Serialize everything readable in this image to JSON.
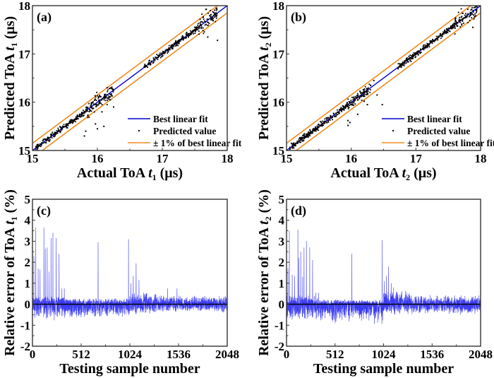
{
  "colors": {
    "fit": "#0000cc",
    "band": "#f08a1c",
    "points": "#000000",
    "error": "#1a1aee",
    "frame": "#333333"
  },
  "chart_data": [
    {
      "id": "a",
      "type": "scatter",
      "panel_label": "(a)",
      "xlabel": "Actual ToA t1 (μs)",
      "xlabel_parts": [
        "Actual ToA ",
        "t",
        "1",
        " (μs)"
      ],
      "ylabel": "Predicted ToA t1 (μs)",
      "ylabel_parts": [
        "Predicted ToA ",
        "t",
        "1",
        " (μs)"
      ],
      "xlim": [
        15,
        18
      ],
      "ylim": [
        15,
        18
      ],
      "xticks": [
        "15",
        "16",
        "17",
        "18"
      ],
      "yticks": [
        "15",
        "16",
        "17",
        "18"
      ],
      "legend": {
        "position": "bottom-right",
        "entries": [
          "Best linear fit",
          "Predicted value",
          "± 1% of best linear fit"
        ]
      },
      "series": [
        {
          "name": "Best linear fit",
          "kind": "line",
          "slope": 1,
          "intercept": 0
        },
        {
          "name": "± 1% of best linear fit",
          "kind": "band",
          "percent": 1
        },
        {
          "name": "Predicted value",
          "kind": "scatter",
          "clusters": [
            {
              "x_range": [
                15.05,
                15.85
              ],
              "spread": 0.03
            },
            {
              "x_range": [
                15.85,
                16.25
              ],
              "spread": 0.08
            },
            {
              "x_range": [
                16.72,
                17.55
              ],
              "spread": 0.03
            },
            {
              "x_range": [
                17.55,
                17.85
              ],
              "spread": 0.1
            }
          ],
          "outliers": [
            [
              15.8,
              15.3
            ],
            [
              15.82,
              15.4
            ],
            [
              15.97,
              15.55
            ],
            [
              16.0,
              15.45
            ],
            [
              16.1,
              15.5
            ],
            [
              16.25,
              15.9
            ],
            [
              16.07,
              15.8
            ],
            [
              17.7,
              17.35
            ],
            [
              17.85,
              17.28
            ],
            [
              16.15,
              16.3
            ],
            [
              16.2,
              16.05
            ]
          ]
        }
      ]
    },
    {
      "id": "b",
      "type": "scatter",
      "panel_label": "(b)",
      "xlabel": "Actual ToA t2 (μs)",
      "xlabel_parts": [
        "Actual ToA ",
        "t",
        "2",
        " (μs)"
      ],
      "ylabel": "Predicted ToA t2 (μs)",
      "ylabel_parts": [
        "Predicted ToA ",
        "t",
        "2",
        " (μs)"
      ],
      "xlim": [
        15,
        18
      ],
      "ylim": [
        15,
        18
      ],
      "xticks": [
        "15",
        "16",
        "17",
        "18"
      ],
      "yticks": [
        "15",
        "16",
        "17",
        "18"
      ],
      "legend": {
        "position": "bottom-right",
        "entries": [
          "Best linear fit",
          "Predicted value",
          "± 1% of best linear fit"
        ]
      },
      "series": [
        {
          "name": "Best linear fit",
          "kind": "line",
          "slope": 1,
          "intercept": 0
        },
        {
          "name": "± 1% of best linear fit",
          "kind": "band",
          "percent": 1
        },
        {
          "name": "Predicted value",
          "kind": "scatter",
          "clusters": [
            {
              "x_range": [
                15.05,
                15.95
              ],
              "spread": 0.03
            },
            {
              "x_range": [
                15.95,
                16.3
              ],
              "spread": 0.06
            },
            {
              "x_range": [
                16.72,
                17.6
              ],
              "spread": 0.03
            },
            {
              "x_range": [
                17.6,
                17.95
              ],
              "spread": 0.08
            }
          ],
          "outliers": [
            [
              15.95,
              15.52
            ],
            [
              15.95,
              15.62
            ],
            [
              15.98,
              15.58
            ],
            [
              16.1,
              15.75
            ],
            [
              16.25,
              15.95
            ],
            [
              16.3,
              16.35
            ],
            [
              16.35,
              16.45
            ],
            [
              16.4,
              16.15
            ],
            [
              16.48,
              15.95
            ],
            [
              17.88,
              17.55
            ],
            [
              16.2,
              16.02
            ]
          ]
        }
      ]
    },
    {
      "id": "c",
      "type": "line",
      "panel_label": "(c)",
      "xlabel": "Testing sample number",
      "ylabel": "Relative error of ToA t1 (%)",
      "ylabel_parts": [
        "Relative error of ToA ",
        "t",
        "1",
        " (%)"
      ],
      "xlim": [
        0,
        2048
      ],
      "ylim": [
        -2,
        5
      ],
      "xticks": [
        "0",
        "512",
        "1024",
        "1536",
        "2048"
      ],
      "yticks": [
        "-2",
        "-1",
        "0",
        "1",
        "2",
        "3",
        "4",
        "5"
      ],
      "spikes": [
        [
          15,
          2.3
        ],
        [
          35,
          3.65
        ],
        [
          60,
          1.7
        ],
        [
          80,
          1.65
        ],
        [
          120,
          3.65
        ],
        [
          135,
          2.65
        ],
        [
          155,
          2.7
        ],
        [
          175,
          1.55
        ],
        [
          195,
          3.15
        ],
        [
          215,
          3.4
        ],
        [
          250,
          3.15
        ],
        [
          280,
          2.4
        ],
        [
          310,
          0.75
        ],
        [
          335,
          0.75
        ],
        [
          690,
          2.95
        ],
        [
          1010,
          3.1
        ],
        [
          1035,
          1.0
        ],
        [
          1060,
          1.35
        ],
        [
          1090,
          1.95
        ],
        [
          1120,
          1.15
        ],
        [
          1420,
          0.75
        ],
        [
          1520,
          0.75
        ]
      ],
      "noise": [
        {
          "x_range": [
            0,
            340
          ],
          "pos_amp": 0.45,
          "neg_amp": -0.8
        },
        {
          "x_range": [
            340,
            1020
          ],
          "pos_amp": 0.3,
          "neg_amp": -0.7
        },
        {
          "x_range": [
            1020,
            1300
          ],
          "pos_amp": 0.6,
          "neg_amp": -0.55
        },
        {
          "x_range": [
            1300,
            2048
          ],
          "pos_amp": 0.45,
          "neg_amp": -0.4
        }
      ]
    },
    {
      "id": "d",
      "type": "line",
      "panel_label": "(d)",
      "xlabel": "Testing sample number",
      "ylabel": "Relative error of ToA t2 (%)",
      "ylabel_parts": [
        "Relative error of ToA ",
        "t",
        "2",
        " (%)"
      ],
      "xlim": [
        0,
        2048
      ],
      "ylim": [
        -2,
        5
      ],
      "xticks": [
        "0",
        "512",
        "1024",
        "1536",
        "2048"
      ],
      "yticks": [
        "-2",
        "-1",
        "0",
        "1",
        "2",
        "3",
        "4",
        "5"
      ],
      "spikes": [
        [
          15,
          1.7
        ],
        [
          30,
          3.5
        ],
        [
          60,
          1.4
        ],
        [
          85,
          1.35
        ],
        [
          120,
          3.55
        ],
        [
          130,
          2.2
        ],
        [
          150,
          2.5
        ],
        [
          170,
          1.3
        ],
        [
          185,
          2.7
        ],
        [
          210,
          3.0
        ],
        [
          245,
          2.7
        ],
        [
          275,
          2.1
        ],
        [
          310,
          0.55
        ],
        [
          340,
          0.55
        ],
        [
          690,
          2.4
        ],
        [
          1010,
          3.05
        ],
        [
          1030,
          1.1
        ],
        [
          1055,
          1.35
        ],
        [
          1075,
          1.8
        ],
        [
          1105,
          1.0
        ],
        [
          1130,
          0.8
        ]
      ],
      "noise": [
        {
          "x_range": [
            0,
            340
          ],
          "pos_amp": 0.45,
          "neg_amp": -0.85
        },
        {
          "x_range": [
            340,
            1020
          ],
          "pos_amp": 0.25,
          "neg_amp": -0.95
        },
        {
          "x_range": [
            1020,
            1300
          ],
          "pos_amp": 0.75,
          "neg_amp": -0.55
        },
        {
          "x_range": [
            1300,
            2048
          ],
          "pos_amp": 0.45,
          "neg_amp": -0.5
        }
      ]
    }
  ]
}
